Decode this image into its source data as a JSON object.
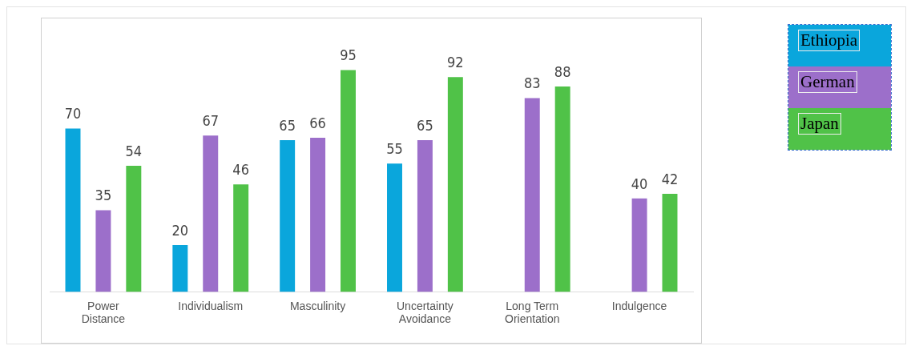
{
  "chart_data": {
    "type": "bar",
    "categories": [
      "Power Distance",
      "Individualism",
      "Masculinity",
      "Uncertainty Avoidance",
      "Long Term Orientation",
      "Indulgence"
    ],
    "series": [
      {
        "name": "Ethiopia",
        "color": "#0aa6dc",
        "values": [
          70,
          20,
          65,
          55,
          null,
          null
        ]
      },
      {
        "name": "German",
        "color": "#9c6fca",
        "values": [
          35,
          67,
          66,
          65,
          83,
          40
        ]
      },
      {
        "name": "Japan",
        "color": "#50c248",
        "values": [
          54,
          46,
          95,
          92,
          88,
          42
        ]
      }
    ],
    "data_labels": true,
    "legend": "right"
  }
}
